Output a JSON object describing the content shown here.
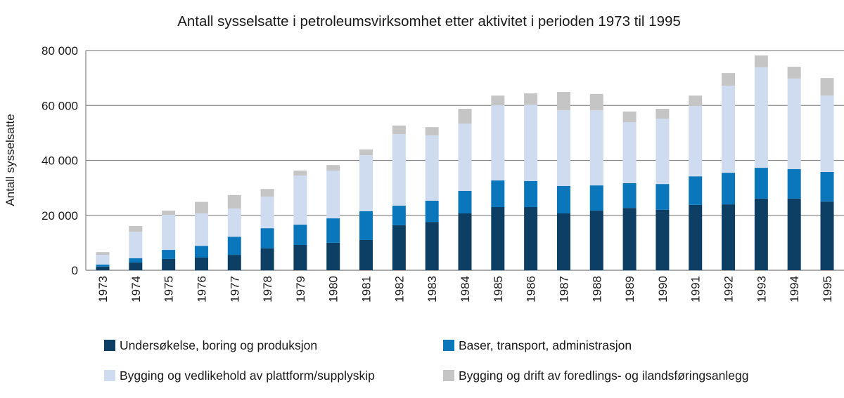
{
  "chart_data": {
    "type": "bar",
    "stacked": true,
    "title": "Antall sysselsatte i petroleumsvirksomhet etter aktivitet i perioden 1973 til 1995",
    "xlabel": "",
    "ylabel": "Antall sysselsatte",
    "ylim": [
      0,
      80000
    ],
    "yticks": [
      0,
      20000,
      40000,
      60000,
      80000
    ],
    "ytick_labels": [
      "0",
      "20 000",
      "40 000",
      "60 000",
      "80 000"
    ],
    "grid": true,
    "legend_position": "bottom",
    "categories": [
      "1973",
      "1974",
      "1975",
      "1976",
      "1977",
      "1978",
      "1979",
      "1980",
      "1981",
      "1982",
      "1983",
      "1984",
      "1985",
      "1986",
      "1987",
      "1988",
      "1989",
      "1990",
      "1991",
      "1992",
      "1993",
      "1994",
      "1995"
    ],
    "series": [
      {
        "name": "Undersøkelse, boring og produksjon",
        "color": "#0c3f63",
        "values": [
          1300,
          2800,
          4100,
          4600,
          5600,
          8000,
          9200,
          10000,
          11000,
          16400,
          17600,
          20700,
          23000,
          23000,
          20700,
          21700,
          22700,
          22000,
          23800,
          24000,
          26100,
          26100,
          25000
        ]
      },
      {
        "name": "Baser, transport, administrasjon",
        "color": "#0a77bd",
        "values": [
          800,
          1600,
          3300,
          4300,
          6600,
          7300,
          7400,
          8900,
          10500,
          7100,
          7700,
          8200,
          9700,
          9500,
          10000,
          9200,
          9000,
          9400,
          10400,
          11500,
          11200,
          10700,
          10800
        ]
      },
      {
        "name": "Bygging og vedlikehold av plattform/supplyskip",
        "color": "#cfdbef",
        "values": [
          3500,
          9600,
          12800,
          11800,
          10300,
          11500,
          17900,
          17400,
          20400,
          26100,
          23800,
          24500,
          27400,
          27800,
          27600,
          27400,
          22200,
          23800,
          25600,
          31700,
          36600,
          33000,
          27800
        ]
      },
      {
        "name": "Bygging og drift av foredlings- og ilandsføringsanlegg",
        "color": "#c5c5c5",
        "values": [
          1000,
          2100,
          1500,
          4200,
          4900,
          2800,
          1800,
          2000,
          2100,
          3100,
          3000,
          5400,
          3500,
          4100,
          6600,
          5900,
          3900,
          3600,
          3800,
          4600,
          4300,
          4300,
          6400
        ]
      }
    ]
  }
}
